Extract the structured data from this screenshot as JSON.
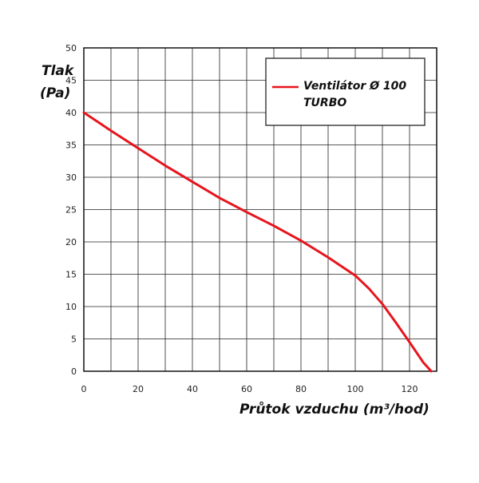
{
  "chart_data": {
    "type": "line",
    "ylabel_line1": "Tlak",
    "ylabel_line2": "(Pa)",
    "xlabel": "Průtok vzduchu (m³/hod)",
    "xlim": [
      0,
      130
    ],
    "ylim": [
      0,
      50
    ],
    "x_ticks": [
      0,
      20,
      40,
      60,
      80,
      100,
      120
    ],
    "y_ticks": [
      0,
      5,
      10,
      15,
      20,
      25,
      30,
      35,
      40,
      45,
      50
    ],
    "x_grid_step": 10,
    "y_grid_step": 5,
    "grid": true,
    "legend_position": "top-right",
    "series": [
      {
        "name_line1": "Ventilátor Ø 100",
        "name_line2": "TURBO",
        "color": "#e8141c",
        "points": [
          [
            0,
            40
          ],
          [
            10,
            37.2
          ],
          [
            20,
            34.5
          ],
          [
            30,
            31.8
          ],
          [
            40,
            29.3
          ],
          [
            50,
            26.8
          ],
          [
            60,
            24.6
          ],
          [
            70,
            22.5
          ],
          [
            80,
            20.2
          ],
          [
            90,
            17.6
          ],
          [
            100,
            14.8
          ],
          [
            105,
            12.8
          ],
          [
            110,
            10.4
          ],
          [
            115,
            7.5
          ],
          [
            120,
            4.5
          ],
          [
            125,
            1.4
          ],
          [
            128,
            0
          ]
        ]
      }
    ]
  }
}
